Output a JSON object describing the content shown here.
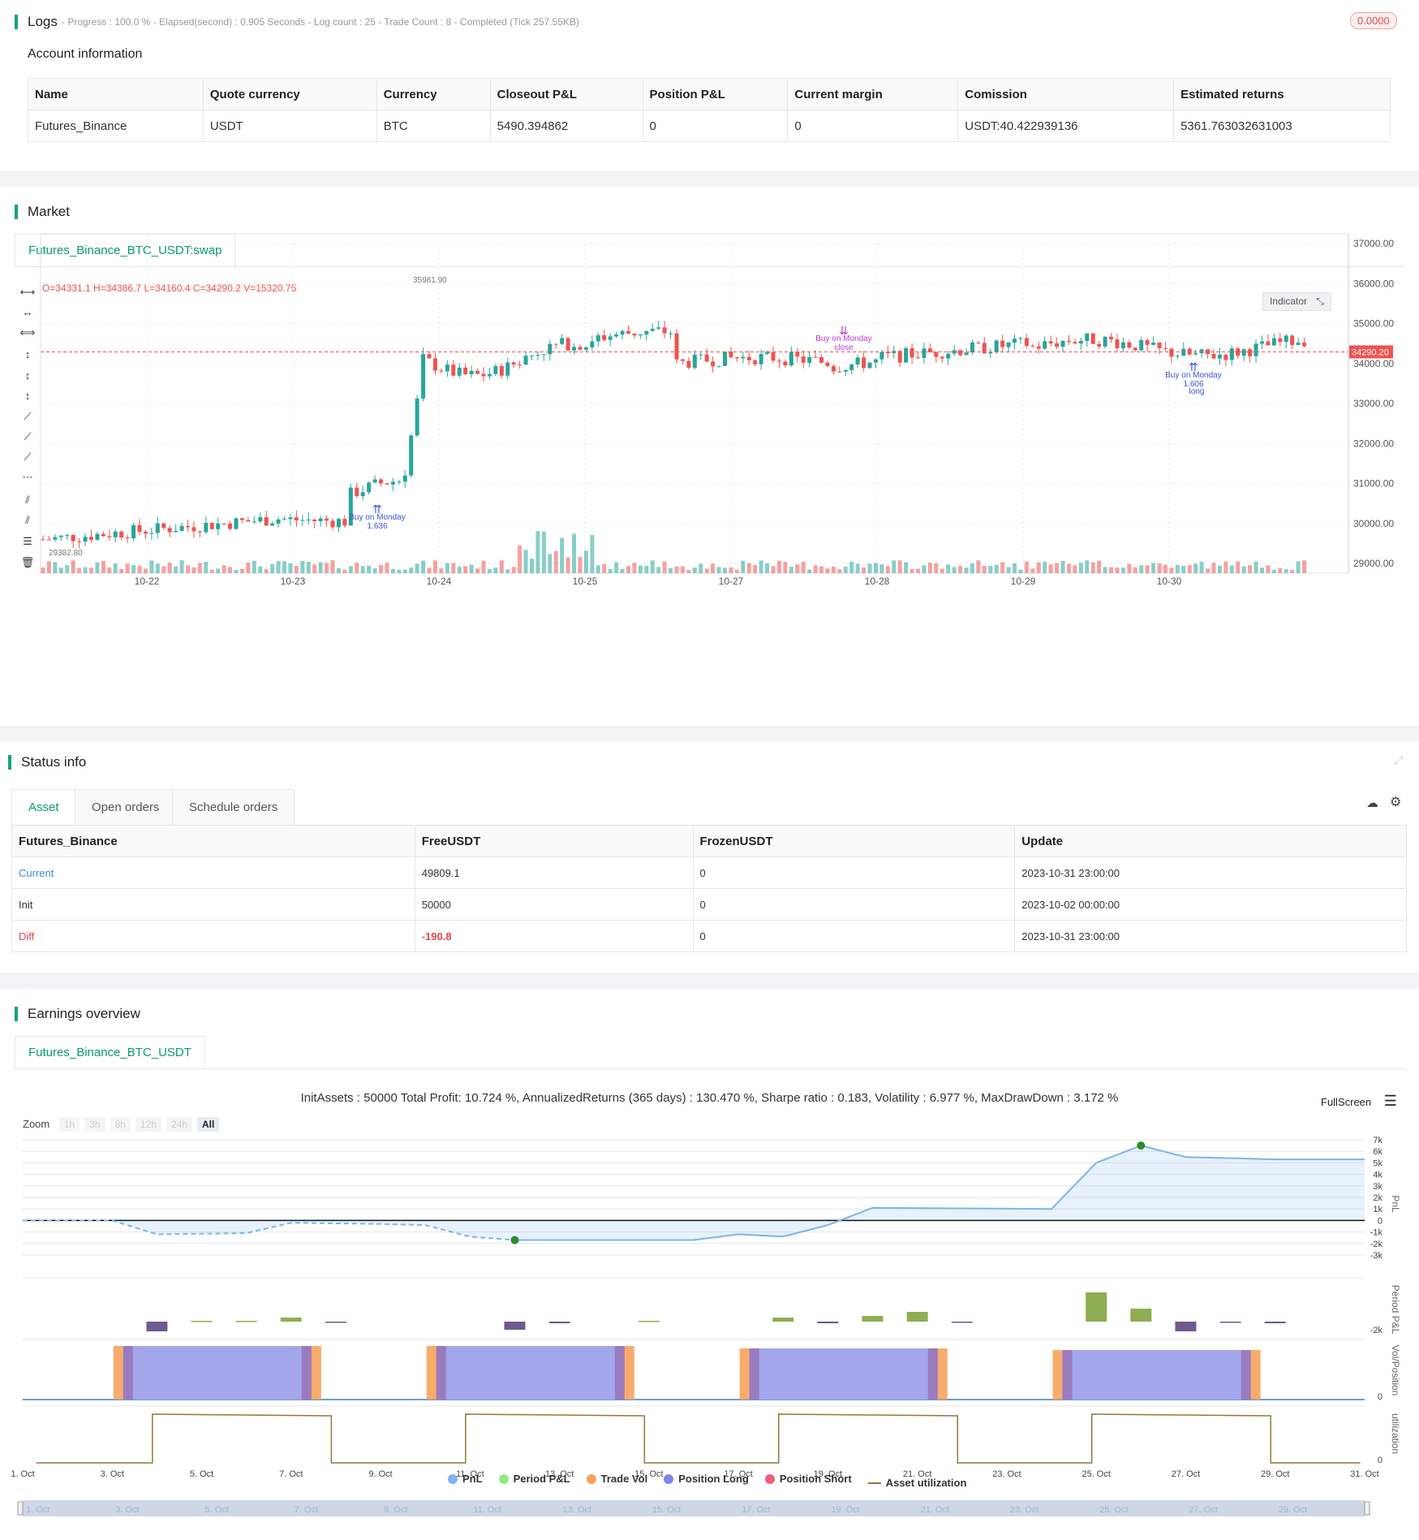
{
  "logs": {
    "title": "Logs",
    "status": "- Progress : 100.0 % - Elapsed(second) : 0.905  Seconds - Log count : 25 - Trade Count : 8 - Completed (Tick 257.55KB)",
    "badge": "0.0000",
    "account_title": "Account information",
    "columns": [
      "Name",
      "Quote currency",
      "Currency",
      "Closeout P&L",
      "Position P&L",
      "Current margin",
      "Comission",
      "Estimated returns"
    ],
    "row": [
      "Futures_Binance",
      "USDT",
      "BTC",
      "5490.394862",
      "0",
      "0",
      "USDT:40.422939136",
      "5361.763032631003"
    ]
  },
  "market": {
    "title": "Market",
    "tab": "Futures_Binance_BTC_USDT:swap",
    "ohlc": "O=34331.1 H=34386.7 L=34160.4 C=34290.2 V=15320.75",
    "indicator_label": "Indicator",
    "last_price_label": "34290.20",
    "high_label": "35981.90",
    "low_label": "29382.80",
    "y_ticks": [
      "37000.00",
      "36000.00",
      "35000.00",
      "34000.00",
      "33000.00",
      "32000.00",
      "31000.00",
      "30000.00",
      "29000.00"
    ],
    "x_ticks": [
      "10-22",
      "10-23",
      "10-24",
      "10-25",
      "10-27",
      "10-28",
      "10-29",
      "10-30"
    ],
    "annotations": [
      {
        "text": "Buy on Monday",
        "sub": "1.636",
        "color": "#3a55d9"
      },
      {
        "text": "Buy on Monday",
        "sub": "close",
        "color": "#c036d6"
      },
      {
        "text": "Buy on Monday",
        "sub": "1.606",
        "extra": "long",
        "color": "#3a55d9"
      }
    ],
    "colors": {
      "up": "#26a69a",
      "down": "#ef5350"
    }
  },
  "status": {
    "title": "Status info",
    "tabs": [
      "Asset",
      "Open orders",
      "Schedule orders"
    ],
    "columns": [
      "Futures_Binance",
      "FreeUSDT",
      "FrozenUSDT",
      "Update"
    ],
    "rows": [
      {
        "label": "Current",
        "free": "49809.1",
        "frozen": "0",
        "update": "2023-10-31 23:00:00"
      },
      {
        "label": "Init",
        "free": "50000",
        "frozen": "0",
        "update": "2023-10-02 00:00:00"
      },
      {
        "label": "Diff",
        "free": "-190.8",
        "frozen": "0",
        "update": "2023-10-31 23:00:00"
      }
    ]
  },
  "earnings": {
    "title": "Earnings overview",
    "tab": "Futures_Binance_BTC_USDT",
    "summary": "InitAssets : 50000 Total Profit: 10.724 %, AnnualizedReturns (365 days) : 130.470 %, Sharpe ratio : 0.183, Volatility : 6.977 %, MaxDrawDown : 3.172 %",
    "fullscreen": "FullScreen",
    "zoom_label": "Zoom",
    "zoom_buttons": [
      "1h",
      "3h",
      "8h",
      "12h",
      "24h",
      "All"
    ],
    "pnl_ticks": [
      "7k",
      "6k",
      "5k",
      "4k",
      "3k",
      "2k",
      "1k",
      "0",
      "-1k",
      "-2k",
      "-3k"
    ],
    "axis_titles": [
      "PnL",
      "Period P&L",
      "Vol/Position",
      "utilization"
    ],
    "period_tick": "-2k",
    "zero_tick": "0",
    "x_ticks": [
      "1. Oct",
      "3. Oct",
      "5. Oct",
      "7. Oct",
      "9. Oct",
      "11. Oct",
      "13. Oct",
      "15. Oct",
      "17. Oct",
      "19. Oct",
      "21. Oct",
      "23. Oct",
      "25. Oct",
      "27. Oct",
      "29. Oct",
      "31. Oct"
    ],
    "nav_ticks": [
      "1. Oct",
      "3. Oct",
      "5. Oct",
      "7. Oct",
      "9. Oct",
      "11. Oct",
      "13. Oct",
      "15. Oct",
      "17. Oct",
      "19. Oct",
      "21. Oct",
      "23. Oct",
      "25. Oct",
      "27. Oct",
      "29. Oct"
    ],
    "legend": [
      {
        "label": "PnL",
        "color": "#7cb5ec"
      },
      {
        "label": "Period P&L",
        "color": "#90ed7d"
      },
      {
        "label": "Trade Vol",
        "color": "#f7a35c"
      },
      {
        "label": "Position Long",
        "color": "#8085e9"
      },
      {
        "label": "Position Short",
        "color": "#f15c80"
      },
      {
        "label": "Asset utilization",
        "color": "#8d7a3a"
      }
    ]
  }
}
